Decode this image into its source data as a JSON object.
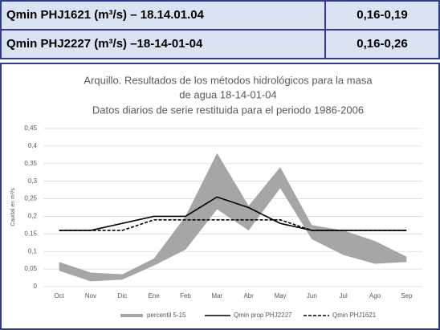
{
  "table": {
    "rows": [
      [
        "Qmin PHJ1621 (m³/s) – 18.14.01.04",
        "0,16-0,19"
      ],
      [
        "Qmin PHJ2227 (m³/s) –18-14-01-04",
        "0,16-0,26"
      ]
    ]
  },
  "chart_data": {
    "type": "line",
    "title": [
      "Arquillo. Resultados de los métodos hidrológicos para la masa",
      "de agua 18-14-01-04",
      "Datos diarios de serie restituida para el periodo 1986-2006"
    ],
    "ylabel": "Caudal en m³/s",
    "categories": [
      "Oct",
      "Nov",
      "Dic",
      "Ene",
      "Feb",
      "Mar",
      "Abr",
      "May",
      "Jun",
      "Jul",
      "Ago",
      "Sep"
    ],
    "ylim": [
      0,
      0.45
    ],
    "yticks": [
      0,
      {
        "value": 0.05,
        "label": "0,05"
      },
      {
        "value": 0.1,
        "label": "0,1"
      },
      {
        "value": 0.15,
        "label": "0,15"
      },
      {
        "value": 0.2,
        "label": "0,2"
      },
      {
        "value": 0.25,
        "label": "0,25"
      },
      {
        "value": 0.3,
        "label": "0,3"
      },
      {
        "value": 0.35,
        "label": "0,35"
      },
      {
        "value": 0.4,
        "label": "0,4"
      },
      {
        "value": 0.45,
        "label": "0,45"
      }
    ],
    "grid": true,
    "band": {
      "name": "percentil 5-15",
      "color": "#a6a6a6",
      "low": [
        0.045,
        0.015,
        0.02,
        0.06,
        0.105,
        0.22,
        0.16,
        0.28,
        0.135,
        0.09,
        0.065,
        0.07
      ],
      "high": [
        0.07,
        0.04,
        0.035,
        0.08,
        0.2,
        0.38,
        0.23,
        0.34,
        0.175,
        0.16,
        0.13,
        0.085
      ]
    },
    "series": [
      {
        "name": "Qmin prop PHJ2227",
        "color": "#000000",
        "dash": false,
        "values": [
          0.16,
          0.16,
          0.18,
          0.2,
          0.2,
          0.255,
          0.225,
          0.18,
          0.16,
          0.16,
          0.16,
          0.16
        ]
      },
      {
        "name": "Qmin PHJ1621",
        "color": "#000000",
        "dash": true,
        "values": [
          0.16,
          0.16,
          0.16,
          0.19,
          0.19,
          0.19,
          0.19,
          0.19,
          0.16,
          0.16,
          0.16,
          0.16
        ]
      }
    ]
  }
}
